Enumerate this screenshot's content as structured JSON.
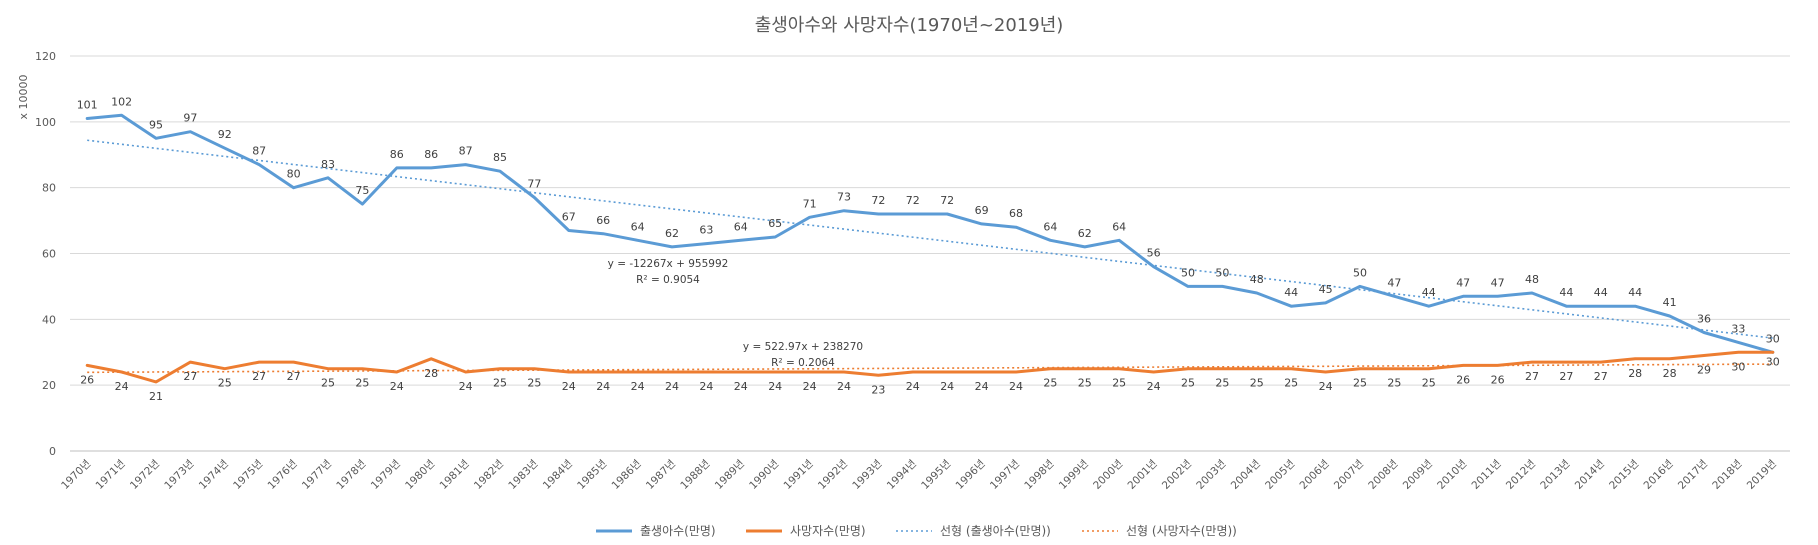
{
  "chart_data": {
    "type": "line",
    "title": "출생아수와 사망자수(1970년~2019년)",
    "y_unit_label": "x 10000",
    "ylim": [
      0,
      120
    ],
    "y_ticks": [
      0,
      20,
      40,
      60,
      80,
      100,
      120
    ],
    "grid": true,
    "legend_position": "bottom",
    "categories": [
      "1970년",
      "1971년",
      "1972년",
      "1973년",
      "1974년",
      "1975년",
      "1976년",
      "1977년",
      "1978년",
      "1979년",
      "1980년",
      "1981년",
      "1982년",
      "1983년",
      "1984년",
      "1985년",
      "1986년",
      "1987년",
      "1988년",
      "1989년",
      "1990년",
      "1991년",
      "1992년",
      "1993년",
      "1994년",
      "1995년",
      "1996년",
      "1997년",
      "1998년",
      "1999년",
      "2000년",
      "2001년",
      "2002년",
      "2003년",
      "2004년",
      "2005년",
      "2006년",
      "2007년",
      "2008년",
      "2009년",
      "2010년",
      "2011년",
      "2012년",
      "2013년",
      "2014년",
      "2015년",
      "2016년",
      "2017년",
      "2018년",
      "2019년"
    ],
    "series": [
      {
        "name": "출생아수(만명)",
        "color": "#5B9BD5",
        "values": [
          101,
          102,
          95,
          97,
          92,
          87,
          80,
          83,
          75,
          86,
          86,
          87,
          85,
          77,
          67,
          66,
          64,
          62,
          63,
          64,
          65,
          71,
          73,
          72,
          72,
          72,
          69,
          68,
          64,
          62,
          64,
          56,
          50,
          50,
          48,
          44,
          45,
          50,
          47,
          44,
          47,
          47,
          48,
          44,
          44,
          44,
          41,
          36,
          33,
          30
        ],
        "labels": [
          "101",
          "102",
          "95",
          "97",
          "92",
          "87",
          "80",
          "83",
          "75",
          "86",
          "86",
          "87",
          "85",
          "77",
          "67",
          "66",
          "64",
          "62",
          "63",
          "64",
          "65",
          "71",
          "73",
          "72",
          "72",
          "72",
          "69",
          "68",
          "64",
          "62",
          "64",
          "56",
          "50",
          "50",
          "48",
          "44",
          "45",
          "50",
          "47",
          "44",
          "47",
          "47",
          "48",
          "44",
          "44",
          "44",
          "41",
          "36",
          "33",
          "30"
        ]
      },
      {
        "name": "사망자수(만명)",
        "color": "#ED7D31",
        "values": [
          26,
          24,
          21,
          27,
          25,
          27,
          27,
          25,
          25,
          24,
          28,
          24,
          25,
          25,
          24,
          24,
          24,
          24,
          24,
          24,
          24,
          24,
          24,
          23,
          24,
          24,
          24,
          24,
          25,
          25,
          25,
          24,
          25,
          25,
          25,
          25,
          24,
          25,
          25,
          25,
          26,
          26,
          27,
          27,
          27,
          28,
          28,
          29,
          30,
          30
        ],
        "labels": [
          "26",
          "24",
          "21",
          "27",
          "25",
          "27",
          "27",
          "25",
          "25",
          "24",
          "28",
          "24",
          "25",
          "25",
          "24",
          "24",
          "24",
          "24",
          "24",
          "24",
          "24",
          "24",
          "24",
          "23",
          "24",
          "24",
          "24",
          "24",
          "25",
          "25",
          "25",
          "24",
          "25",
          "25",
          "25",
          "25",
          "24",
          "25",
          "25",
          "25",
          "26",
          "26",
          "27",
          "27",
          "27",
          "28",
          "28",
          "29",
          "30",
          "30"
        ]
      }
    ],
    "trendlines": [
      {
        "name": "선형 (출생아수(만명))",
        "color": "#5B9BD5",
        "start": 94.4,
        "end": 34.3,
        "equation": "y = -12267x + 955992",
        "r2": "R² = 0.9054"
      },
      {
        "name": "선형 (사망자수(만명))",
        "color": "#ED7D31",
        "start": 23.9,
        "end": 26.4,
        "equation": "y = 522.97x + 238270",
        "r2": "R² = 0.2064"
      }
    ]
  }
}
